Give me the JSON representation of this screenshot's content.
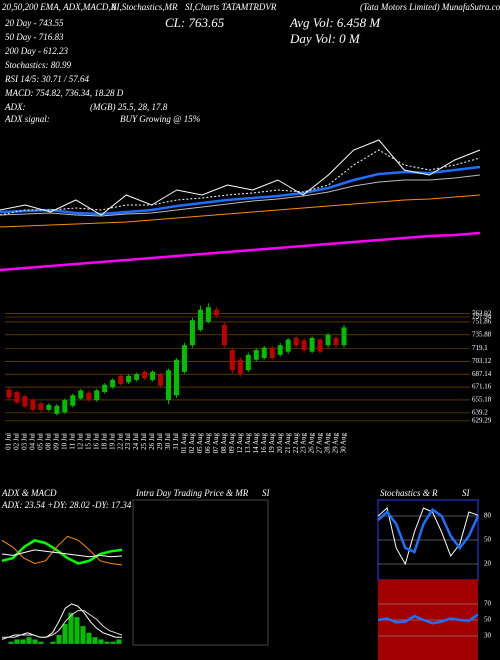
{
  "header": {
    "lines": [
      "20,50,200 EMA, ADX,MACD,R",
      "SI,Stochastics,MR",
      "SI,Charts TATAMTRDVR",
      "(Tata Motors Limited) MunafaSutra.com",
      "CL: 763.65",
      "Avg Vol: 6.458  M",
      "Day Vol: 0  M",
      "20 Day - 743.55",
      "50 Day - 716.83",
      "200 Day - 612.23",
      "Stochastics: 80.99",
      "RSI 14/5: 30.71 / 57.64",
      "MACD: 754.82, 736.34, 18.28  D",
      "ADX:",
      "(MGB) 25.5, 28, 17.8",
      "ADX  signal:",
      "BUY Growing @ 15%"
    ]
  },
  "chart_data": [
    {
      "type": "line",
      "ylim": [
        500,
        800
      ],
      "series": [
        {
          "color": "#ff00ff",
          "thick": true,
          "values": [
            530,
            532,
            534,
            536,
            538,
            540,
            542,
            544,
            546,
            548,
            550,
            552,
            554,
            556,
            558,
            560,
            562,
            564,
            565,
            567
          ]
        },
        {
          "color": "#ff8c00",
          "values": [
            573,
            574,
            575,
            576,
            577,
            578,
            580,
            582,
            584,
            586,
            588,
            590,
            592,
            594,
            596,
            598,
            600,
            601,
            603,
            605
          ]
        },
        {
          "color": "#bbbbbb",
          "values": [
            585,
            586,
            587,
            585,
            584,
            586,
            587,
            590,
            593,
            596,
            599,
            601,
            604,
            608,
            614,
            618,
            620,
            620,
            622,
            625
          ]
        },
        {
          "color": "#1e6fff",
          "thick": true,
          "values": [
            588,
            589,
            590,
            587,
            586,
            588,
            590,
            594,
            597,
            600,
            602,
            604,
            607,
            612,
            620,
            626,
            628,
            627,
            630,
            633
          ]
        },
        {
          "color": "#ffffff",
          "dashed": true,
          "values": [
            585,
            590,
            590,
            592,
            590,
            595,
            595,
            600,
            602,
            605,
            607,
            610,
            608,
            615,
            635,
            650,
            635,
            630,
            635,
            642
          ]
        },
        {
          "color": "#ffffff",
          "values": [
            590,
            595,
            588,
            600,
            585,
            605,
            595,
            610,
            605,
            615,
            610,
            620,
            605,
            625,
            650,
            660,
            630,
            625,
            640,
            650
          ]
        }
      ]
    },
    {
      "type": "candlestick",
      "up_color": "#00c000",
      "down_color": "#c00000",
      "ylim": [
        618,
        779
      ],
      "yticks": [
        762.02,
        757.94,
        751.86,
        735.88,
        719.1,
        703.12,
        687.14,
        671.16,
        655.18,
        639.2,
        629.29
      ],
      "categories": [
        "01 Jul",
        "02 Jul",
        "03 Jul",
        "04 Jul",
        "05 Jul",
        "08 Jul",
        "09 Jul",
        "10 Jul",
        "11 Jul",
        "12 Jul",
        "15 Jul",
        "16 Jul",
        "18 Jul",
        "19 Jul",
        "22 Jul",
        "23 Jul",
        "24 Jul",
        "25 Jul",
        "26 Jul",
        "29 Jul",
        "30 Jul",
        "31 Jul",
        "01 Aug",
        "02 Aug",
        "05 Aug",
        "06 Aug",
        "07 Aug",
        "08 Aug",
        "09 Aug",
        "12 Aug",
        "13 Aug",
        "14 Aug",
        "16 Aug",
        "19 Aug",
        "20 Aug",
        "21 Aug",
        "22 Aug",
        "23 Aug",
        "26 Aug",
        "27 Aug",
        "28 Aug",
        "29 Aug",
        "30 Aug"
      ],
      "open": [
        668,
        665,
        660,
        655,
        651,
        643,
        638,
        640,
        648,
        657,
        664,
        655,
        665,
        671,
        685,
        677,
        680,
        690,
        680,
        687,
        655,
        661,
        690,
        723,
        742,
        752,
        767,
        748,
        717,
        705,
        692,
        705,
        707,
        720,
        711,
        715,
        732,
        729,
        715,
        730,
        723,
        732,
        723
      ],
      "high": [
        671,
        667,
        662,
        657,
        653,
        651,
        650,
        657,
        663,
        669,
        666,
        669,
        676,
        682,
        687,
        687,
        689,
        692,
        692,
        689,
        694,
        707,
        726,
        757,
        772,
        775,
        770,
        752,
        720,
        708,
        714,
        719,
        722,
        722,
        726,
        732,
        735,
        732,
        734,
        732,
        738,
        734,
        748
      ],
      "low": [
        655,
        650,
        645,
        641,
        640,
        641,
        636,
        638,
        646,
        655,
        653,
        653,
        663,
        669,
        673,
        675,
        678,
        680,
        678,
        670,
        650,
        658,
        688,
        720,
        740,
        750,
        757,
        720,
        688,
        684,
        690,
        703,
        705,
        705,
        709,
        712,
        720,
        714,
        713,
        713,
        720,
        720,
        720
      ],
      "close": [
        658,
        652,
        647,
        643,
        643,
        649,
        648,
        655,
        661,
        667,
        655,
        667,
        674,
        680,
        675,
        685,
        687,
        682,
        690,
        673,
        692,
        705,
        723,
        754,
        767,
        770,
        760,
        723,
        692,
        687,
        711,
        717,
        720,
        707,
        723,
        730,
        723,
        717,
        732,
        715,
        736,
        723,
        745
      ]
    },
    {
      "type": "line",
      "title": "ADX  & MACD",
      "label": "ADX: 23.54  +DY: 28.02  -DY: 17.34",
      "ylim": [
        0,
        50
      ],
      "series": [
        {
          "color": "#00ff00",
          "thick": true,
          "values": [
            20,
            22,
            30,
            35,
            33,
            28,
            22,
            18,
            20,
            25,
            27,
            28
          ]
        },
        {
          "color": "#ff8c00",
          "values": [
            35,
            30,
            22,
            18,
            20,
            30,
            38,
            35,
            28,
            20,
            18,
            17
          ]
        },
        {
          "color": "#ffffff",
          "values": [
            25,
            24,
            26,
            28,
            27,
            26,
            25,
            24,
            23,
            24,
            23,
            23.5
          ]
        }
      ]
    },
    {
      "type": "macd",
      "ylim": [
        -5,
        22
      ],
      "color": "#00c000",
      "histogram": [
        0,
        1,
        2,
        2,
        3,
        2,
        1,
        0,
        1,
        4,
        9,
        14,
        12,
        8,
        5,
        3,
        2,
        1,
        1,
        2
      ],
      "series": [
        {
          "color": "#ffffff",
          "values": [
            2,
            3,
            4,
            4,
            5,
            4,
            3,
            3,
            5,
            10,
            16,
            18,
            17,
            14,
            10,
            7,
            5,
            4,
            3,
            3
          ]
        },
        {
          "color": "#dddddd",
          "values": [
            3,
            3,
            3,
            4,
            4,
            4,
            3,
            3,
            4,
            6,
            10,
            13,
            15,
            15,
            13,
            11,
            8,
            6,
            5,
            4
          ]
        }
      ]
    },
    {
      "type": "blank",
      "title": [
        "Intra Day Trading Price  & MR",
        "SI"
      ]
    },
    {
      "type": "line",
      "title": [
        "Stochastics & R",
        "SI"
      ],
      "ylim": [
        0,
        100
      ],
      "yticks": [
        20,
        50,
        80
      ],
      "grid": true,
      "series": [
        {
          "color": "#ffffff",
          "values": [
            80,
            90,
            40,
            20,
            60,
            90,
            85,
            60,
            30,
            45,
            85,
            81
          ]
        },
        {
          "color": "#1e6fff",
          "thick": true,
          "values": [
            75,
            85,
            70,
            40,
            35,
            70,
            88,
            80,
            55,
            40,
            55,
            80
          ]
        }
      ]
    },
    {
      "type": "line",
      "background": "#a00000",
      "ylim": [
        0,
        100
      ],
      "yticks": [
        30,
        50,
        70
      ],
      "grid": true,
      "series": [
        {
          "color": "#1e6fff",
          "thick": true,
          "values": [
            50,
            52,
            47,
            48,
            55,
            50,
            46,
            48,
            52,
            50,
            49,
            57
          ]
        }
      ]
    }
  ]
}
